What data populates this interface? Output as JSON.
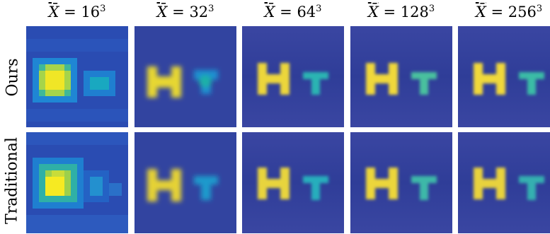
{
  "figure": {
    "column_titles": [
      {
        "symbol": "X̄",
        "equals": " = ",
        "base": "16",
        "exponent": "3"
      },
      {
        "symbol": "X̄",
        "equals": " = ",
        "base": "32",
        "exponent": "3"
      },
      {
        "symbol": "X̄",
        "equals": " = ",
        "base": "64",
        "exponent": "3"
      },
      {
        "symbol": "X̄",
        "equals": " = ",
        "base": "128",
        "exponent": "3"
      },
      {
        "symbol": "X̄",
        "equals": " = ",
        "base": "256",
        "exponent": "3"
      }
    ],
    "row_labels": [
      "Ours",
      "Traditional"
    ],
    "colormap": "viridis-like",
    "background_color": "#3848a0",
    "highlight_colors": [
      "#1e3a9a",
      "#1f7fd0",
      "#25b8b0",
      "#7ed05a",
      "#f0e020"
    ],
    "panel_content": [
      "H",
      "T"
    ]
  }
}
